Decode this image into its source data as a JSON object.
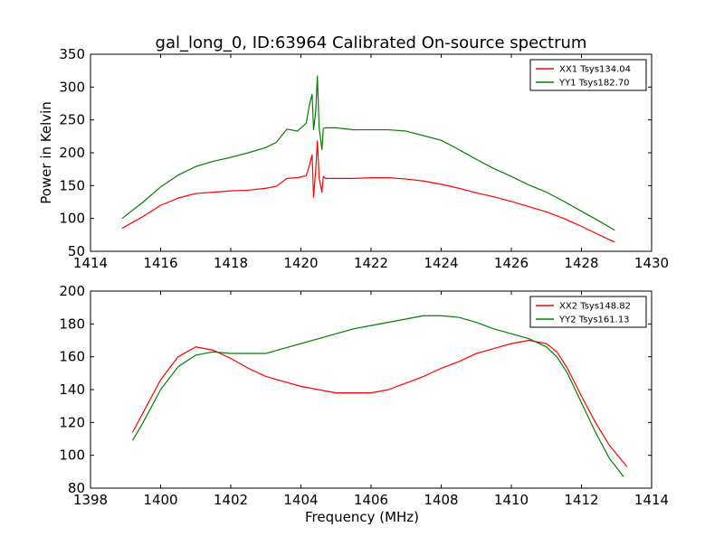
{
  "figure": {
    "title": "gal_long_0, ID:63964 Calibrated On-source spectrum"
  },
  "chart_data": [
    {
      "type": "line",
      "title": "gal_long_0, ID:63964 Calibrated On-source spectrum",
      "xlabel": "",
      "ylabel": "Power in Kelvin",
      "xlim": [
        1414,
        1430
      ],
      "ylim": [
        50,
        350
      ],
      "xticks": [
        1414,
        1416,
        1418,
        1420,
        1422,
        1424,
        1426,
        1428,
        1430
      ],
      "yticks": [
        50,
        100,
        150,
        200,
        250,
        300,
        350
      ],
      "grid": false,
      "legend": "top-right",
      "series": [
        {
          "name": "XX1 Tsys134.04",
          "color": "#ff0000",
          "x": [
            1414.9,
            1415.5,
            1416.0,
            1416.5,
            1417.0,
            1417.5,
            1418.0,
            1418.5,
            1419.0,
            1419.3,
            1419.6,
            1419.9,
            1420.15,
            1420.25,
            1420.32,
            1420.36,
            1420.42,
            1420.47,
            1420.52,
            1420.6,
            1420.64,
            1420.7,
            1421.0,
            1421.5,
            1422.0,
            1422.5,
            1423.0,
            1423.5,
            1424.0,
            1424.5,
            1425.0,
            1425.5,
            1426.0,
            1426.5,
            1427.0,
            1427.5,
            1428.0,
            1428.5,
            1428.95
          ],
          "values": [
            85,
            103,
            120,
            131,
            138,
            140,
            142,
            143,
            146,
            149,
            161,
            162,
            165,
            182,
            197,
            132,
            172,
            218,
            162,
            140,
            164,
            161,
            161,
            161,
            162,
            162,
            160,
            157,
            152,
            146,
            139,
            133,
            126,
            118,
            110,
            100,
            88,
            75,
            64
          ]
        },
        {
          "name": "YY1 Tsys182.70",
          "color": "#008000",
          "x": [
            1414.9,
            1415.5,
            1416.0,
            1416.5,
            1417.0,
            1417.5,
            1418.0,
            1418.5,
            1419.0,
            1419.3,
            1419.6,
            1419.9,
            1420.15,
            1420.25,
            1420.32,
            1420.36,
            1420.42,
            1420.47,
            1420.52,
            1420.6,
            1420.64,
            1420.7,
            1421.0,
            1421.5,
            1422.0,
            1422.5,
            1423.0,
            1423.5,
            1424.0,
            1424.5,
            1425.0,
            1425.5,
            1426.0,
            1426.5,
            1427.0,
            1427.5,
            1428.0,
            1428.5,
            1428.95
          ],
          "values": [
            100,
            125,
            148,
            166,
            179,
            187,
            193,
            200,
            208,
            216,
            236,
            233,
            245,
            275,
            289,
            235,
            262,
            317,
            238,
            205,
            237,
            238,
            238,
            235,
            235,
            235,
            233,
            226,
            219,
            205,
            190,
            176,
            164,
            151,
            140,
            126,
            111,
            96,
            82
          ]
        }
      ]
    },
    {
      "type": "line",
      "title": "",
      "xlabel": "Frequency (MHz)",
      "ylabel": "",
      "xlim": [
        1398,
        1414
      ],
      "ylim": [
        80,
        200
      ],
      "xticks": [
        1398,
        1400,
        1402,
        1404,
        1406,
        1408,
        1410,
        1412,
        1414
      ],
      "yticks": [
        80,
        100,
        120,
        140,
        160,
        180,
        200
      ],
      "grid": false,
      "legend": "top-right",
      "series": [
        {
          "name": "XX2 Tsys148.82",
          "color": "#ff0000",
          "x": [
            1399.2,
            1399.5,
            1400.0,
            1400.5,
            1401.0,
            1401.5,
            1402.0,
            1402.5,
            1403.0,
            1403.5,
            1404.0,
            1404.5,
            1405.0,
            1405.5,
            1406.0,
            1406.5,
            1407.0,
            1407.5,
            1408.0,
            1408.5,
            1409.0,
            1409.5,
            1410.0,
            1410.5,
            1411.0,
            1411.3,
            1411.6,
            1412.0,
            1412.4,
            1412.8,
            1413.3
          ],
          "values": [
            114,
            126,
            146,
            160,
            166,
            164,
            159,
            153,
            148,
            145,
            142,
            140,
            138,
            138,
            138,
            140,
            144,
            148,
            153,
            157,
            162,
            165,
            168,
            170,
            168,
            163,
            153,
            136,
            120,
            106,
            93
          ]
        },
        {
          "name": "YY2 Tsys161.13",
          "color": "#008000",
          "x": [
            1399.2,
            1399.5,
            1400.0,
            1400.5,
            1401.0,
            1401.5,
            1402.0,
            1402.5,
            1403.0,
            1403.5,
            1404.0,
            1404.5,
            1405.0,
            1405.5,
            1406.0,
            1406.5,
            1407.0,
            1407.5,
            1408.0,
            1408.5,
            1409.0,
            1409.5,
            1410.0,
            1410.5,
            1411.0,
            1411.3,
            1411.6,
            1412.0,
            1412.4,
            1412.8,
            1413.2
          ],
          "values": [
            109,
            120,
            140,
            154,
            161,
            163,
            162,
            162,
            162,
            165,
            168,
            171,
            174,
            177,
            179,
            181,
            183,
            185,
            185,
            184,
            181,
            177,
            174,
            171,
            166,
            160,
            150,
            132,
            114,
            98,
            87
          ]
        }
      ]
    }
  ]
}
